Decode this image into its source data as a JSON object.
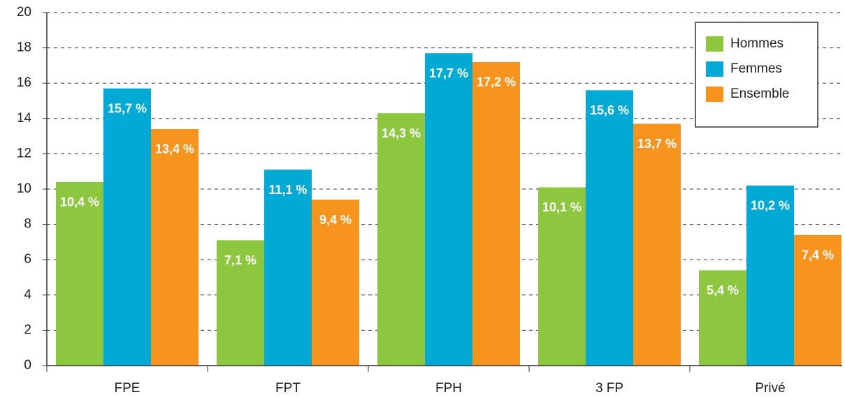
{
  "chart_data": {
    "type": "bar",
    "categories": [
      "FPE",
      "FPT",
      "FPH",
      "3 FP",
      "Privé"
    ],
    "series": [
      {
        "name": "Hommes",
        "color": "#8dc63f",
        "values": [
          10.4,
          7.1,
          14.3,
          10.1,
          5.4
        ],
        "value_labels": [
          "10,4 %",
          "7,1 %",
          "14,3 %",
          "10,1 %",
          "5,4 %"
        ]
      },
      {
        "name": "Femmes",
        "color": "#00aad4",
        "values": [
          15.7,
          11.1,
          17.7,
          15.6,
          10.2
        ],
        "value_labels": [
          "15,7 %",
          "11,1 %",
          "17,7 %",
          "15,6 %",
          "10,2 %"
        ]
      },
      {
        "name": "Ensemble",
        "color": "#f7941d",
        "values": [
          13.4,
          9.4,
          17.2,
          13.7,
          7.4
        ],
        "value_labels": [
          "13,4 %",
          "9,4 %",
          "17,2 %",
          "13,7 %",
          "7,4 %"
        ]
      }
    ],
    "ylim": [
      0,
      20
    ],
    "yticks": [
      0,
      2,
      4,
      6,
      8,
      10,
      12,
      14,
      16,
      18,
      20
    ],
    "grid": true,
    "legend": "top-right"
  }
}
